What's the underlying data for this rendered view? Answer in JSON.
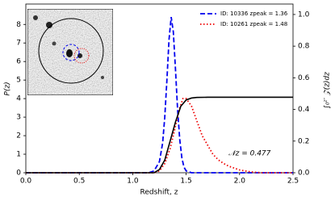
{
  "chart_data": {
    "type": "line",
    "xlabel": "Redshift, z",
    "ylabel": "P(z)",
    "y2label": "∫₀ᶻ′ 𝒵(z)dz",
    "annotation": "𝒩z =  0.477",
    "xlim": [
      0,
      2.5
    ],
    "xticks": [
      {
        "value": 0,
        "label": "0.0"
      },
      0.5,
      {
        "value": 1,
        "label": "1.0"
      },
      1.5,
      {
        "value": 2,
        "label": "2.0"
      },
      2.5
    ],
    "ylim": [
      0,
      9.1
    ],
    "yticks": [
      0,
      1,
      2,
      3,
      4,
      5,
      6,
      7,
      8
    ],
    "y2lim": [
      0,
      1.066
    ],
    "y2ticks": [
      {
        "value": 0,
        "label": "0.0"
      },
      0.2,
      0.4,
      0.6,
      0.8,
      {
        "value": 1,
        "label": "1.0"
      }
    ],
    "series": [
      {
        "name": "ID: 10336 zpeak = 1.36",
        "color": "#0000ee",
        "dash": "6,3",
        "x": [
          0,
          1.15,
          1.2,
          1.25,
          1.28,
          1.3,
          1.32,
          1.34,
          1.36,
          1.38,
          1.4,
          1.42,
          1.44,
          1.46,
          1.48,
          1.5,
          1.55,
          2.5
        ],
        "values": [
          0,
          0,
          0.1,
          0.6,
          1.6,
          3.0,
          5.0,
          7.2,
          8.4,
          7.6,
          5.6,
          3.4,
          1.8,
          0.8,
          0.3,
          0.1,
          0,
          0
        ]
      },
      {
        "name": "ID: 10261 zpeak = 1.48",
        "color": "#ee0000",
        "dash": "1.5,2.5",
        "x": [
          0,
          1.2,
          1.25,
          1.3,
          1.35,
          1.4,
          1.44,
          1.47,
          1.5,
          1.55,
          1.6,
          1.65,
          1.7,
          1.75,
          1.8,
          1.85,
          1.9,
          2.0,
          2.1,
          2.2,
          2.5
        ],
        "values": [
          0,
          0,
          0.1,
          0.5,
          1.3,
          2.5,
          3.5,
          4.0,
          4.0,
          3.6,
          2.8,
          2.0,
          1.5,
          1.0,
          0.7,
          0.5,
          0.35,
          0.15,
          0.05,
          0,
          0
        ]
      },
      {
        "color": "#000000",
        "axis": "y2",
        "x": [
          0,
          1.2,
          1.25,
          1.3,
          1.35,
          1.4,
          1.45,
          1.5,
          1.55,
          1.6,
          1.7,
          2.5
        ],
        "values": [
          0,
          0,
          0.02,
          0.08,
          0.2,
          0.32,
          0.42,
          0.46,
          0.472,
          0.476,
          0.477,
          0.477
        ]
      }
    ]
  }
}
